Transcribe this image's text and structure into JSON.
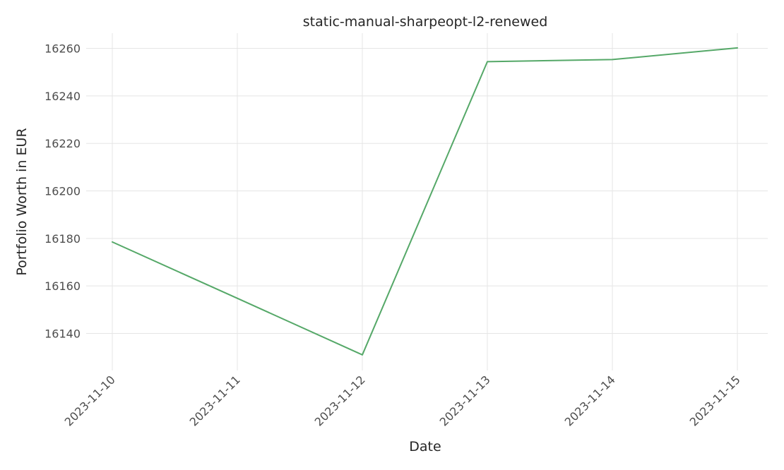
{
  "chart_data": {
    "type": "line",
    "title": "static-manual-sharpeopt-l2-renewed",
    "xlabel": "Date",
    "ylabel": "Portfolio Worth in EUR",
    "x": [
      "2023-11-10",
      "2023-11-11",
      "2023-11-12",
      "2023-11-13",
      "2023-11-14",
      "2023-11-15"
    ],
    "series": [
      {
        "values": [
          16178.5,
          16154.8,
          16131,
          16254.4,
          16255.3,
          16260.2
        ],
        "color": "#55a868"
      }
    ],
    "y_ticks": [
      16140,
      16160,
      16180,
      16200,
      16220,
      16240,
      16260
    ],
    "ylim": [
      16124.4,
      16266.4
    ],
    "grid": true,
    "x_tick_rotation_deg": 45
  }
}
